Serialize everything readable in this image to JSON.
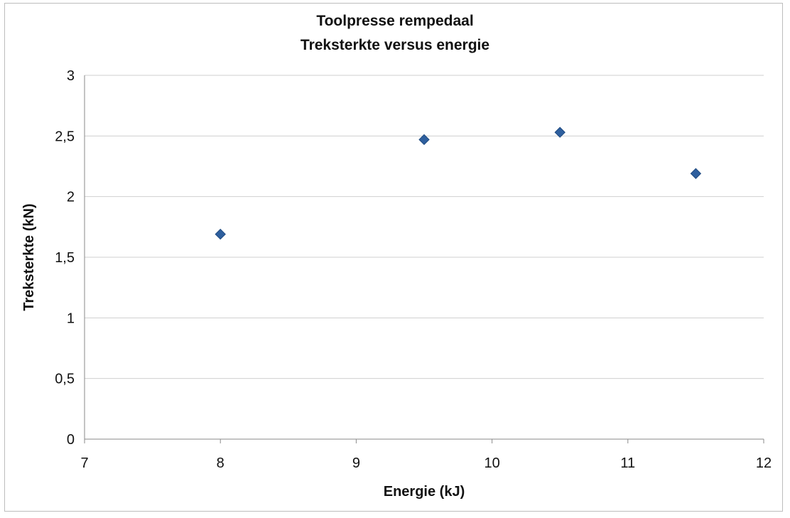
{
  "chart_data": {
    "type": "scatter",
    "title": "Toolpresse rempedaal",
    "subtitle": "Treksterkte versus energie",
    "xlabel": "Energie (kJ)",
    "ylabel": "Treksterkte  (kN)",
    "xlim": [
      7,
      12
    ],
    "ylim": [
      0,
      3
    ],
    "xticks": [
      7,
      8,
      9,
      10,
      11,
      12
    ],
    "yticks": [
      0,
      0.5,
      1,
      1.5,
      2,
      2.5,
      3
    ],
    "ytick_labels": [
      "0",
      "0,5",
      "1",
      "1,5",
      "2",
      "2,5",
      "3"
    ],
    "xtick_labels": [
      "7",
      "8",
      "9",
      "10",
      "11",
      "12"
    ],
    "grid": true,
    "legend": "none",
    "marker": "diamond",
    "marker_color": "#2e5f9e",
    "points": [
      {
        "x": 8,
        "y": 1.69
      },
      {
        "x": 9.5,
        "y": 2.47
      },
      {
        "x": 10.5,
        "y": 2.53
      },
      {
        "x": 11.5,
        "y": 2.19
      }
    ]
  }
}
